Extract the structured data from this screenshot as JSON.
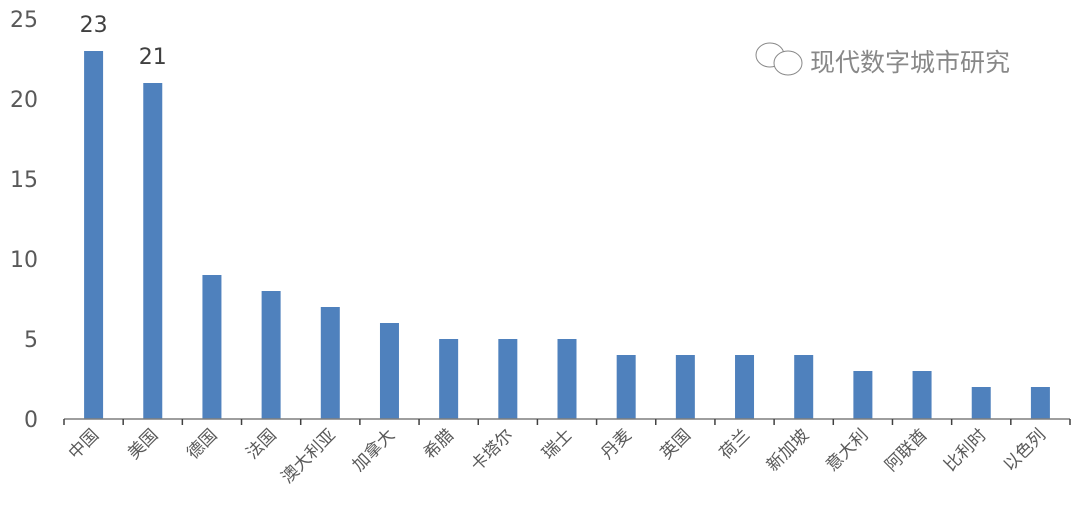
{
  "chart_data": {
    "type": "bar",
    "categories": [
      "中国",
      "美国",
      "德国",
      "法国",
      "澳大利亚",
      "加拿大",
      "希腊",
      "卡塔尔",
      "瑞士",
      "丹麦",
      "英国",
      "荷兰",
      "新加坡",
      "意大利",
      "阿联酋",
      "比利时",
      "以色列"
    ],
    "values": [
      23,
      21,
      9,
      8,
      7,
      6,
      5,
      5,
      5,
      4,
      4,
      4,
      4,
      3,
      3,
      2,
      2
    ],
    "data_labels": {
      "0": "23",
      "1": "21"
    },
    "yticks": [
      "0",
      "5",
      "10",
      "15",
      "20",
      "25"
    ],
    "ylim": [
      0,
      25
    ],
    "title": "",
    "xlabel": "",
    "ylabel": "",
    "grid": false,
    "bar_color": "#4F81BD",
    "text_color": "#595959"
  },
  "watermark": {
    "text": "现代数字城市研究",
    "icon": "wechat-icon"
  }
}
